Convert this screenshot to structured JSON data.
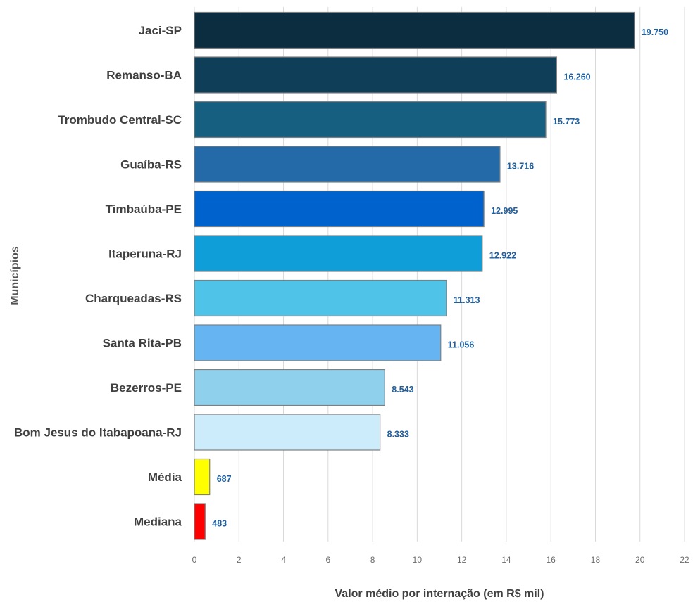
{
  "chart_data": {
    "type": "bar",
    "orientation": "horizontal",
    "xlabel": "Valor médio por internação (em R$ mil)",
    "ylabel": "Municípios",
    "xlim": [
      0,
      22
    ],
    "xticks": [
      0,
      2,
      4,
      6,
      8,
      10,
      12,
      14,
      16,
      18,
      20,
      22
    ],
    "grid": true,
    "bars": [
      {
        "category": "Jaci-SP",
        "value": 19.75,
        "label": "19.750",
        "color": "#0c2d40"
      },
      {
        "category": "Remanso-BA",
        "value": 16.26,
        "label": "16.260",
        "color": "#0f3f58"
      },
      {
        "category": "Trombudo Central-SC",
        "value": 15.773,
        "label": "15.773",
        "color": "#175f81"
      },
      {
        "category": "Guaíba-RS",
        "value": 13.716,
        "label": "13.716",
        "color": "#256aa8"
      },
      {
        "category": "Timbaúba-PE",
        "value": 12.995,
        "label": "12.995",
        "color": "#0062cc"
      },
      {
        "category": "Itaperuna-RJ",
        "value": 12.922,
        "label": "12.922",
        "color": "#0f9ed8"
      },
      {
        "category": "Charqueadas-RS",
        "value": 11.313,
        "label": "11.313",
        "color": "#4fc3e8"
      },
      {
        "category": "Santa Rita-PB",
        "value": 11.056,
        "label": "11.056",
        "color": "#66b5f2"
      },
      {
        "category": "Bezerros-PE",
        "value": 8.543,
        "label": "8.543",
        "color": "#8fd0ec"
      },
      {
        "category": "Bom Jesus do Itabapoana-RJ",
        "value": 8.333,
        "label": "8.333",
        "color": "#ccecfc"
      },
      {
        "category": "Média",
        "value": 0.687,
        "label": "687",
        "color": "#ffff00"
      },
      {
        "category": "Mediana",
        "value": 0.483,
        "label": "483",
        "color": "#ff0000"
      }
    ]
  }
}
